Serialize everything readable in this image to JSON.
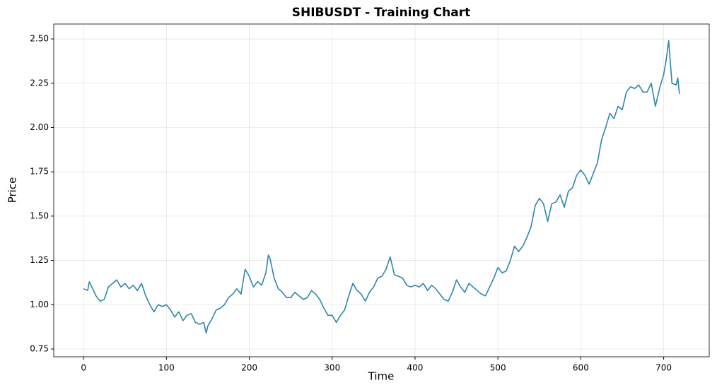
{
  "chart_data": {
    "type": "line",
    "title": "SHIBUSDT - Training Chart",
    "x_label": "Time",
    "y_label": "Price",
    "x": [
      0,
      5,
      7,
      10,
      15,
      20,
      25,
      30,
      35,
      40,
      45,
      50,
      55,
      60,
      65,
      70,
      75,
      80,
      85,
      90,
      95,
      100,
      105,
      110,
      115,
      120,
      125,
      130,
      135,
      140,
      145,
      148,
      150,
      155,
      160,
      165,
      170,
      175,
      180,
      185,
      190,
      195,
      200,
      205,
      210,
      215,
      220,
      223,
      225,
      230,
      235,
      240,
      245,
      250,
      255,
      260,
      265,
      270,
      275,
      280,
      285,
      290,
      295,
      300,
      305,
      310,
      315,
      320,
      325,
      330,
      335,
      340,
      345,
      350,
      355,
      360,
      365,
      370,
      375,
      380,
      385,
      390,
      395,
      400,
      405,
      410,
      415,
      420,
      425,
      430,
      435,
      440,
      445,
      450,
      455,
      460,
      465,
      470,
      475,
      480,
      485,
      490,
      495,
      500,
      505,
      510,
      515,
      520,
      525,
      530,
      535,
      540,
      545,
      550,
      555,
      560,
      565,
      570,
      575,
      580,
      585,
      590,
      595,
      600,
      605,
      610,
      615,
      620,
      625,
      630,
      635,
      640,
      645,
      650,
      655,
      660,
      665,
      670,
      675,
      680,
      685,
      690,
      695,
      700,
      703,
      706,
      710,
      715,
      717,
      719
    ],
    "series": [
      {
        "name": "SHIBUSDT",
        "color": "#2e86ab",
        "values": [
          1.09,
          1.08,
          1.13,
          1.1,
          1.05,
          1.02,
          1.03,
          1.1,
          1.12,
          1.14,
          1.1,
          1.12,
          1.09,
          1.11,
          1.08,
          1.12,
          1.05,
          1.0,
          0.96,
          1.0,
          0.99,
          1.0,
          0.97,
          0.93,
          0.96,
          0.91,
          0.94,
          0.95,
          0.9,
          0.89,
          0.9,
          0.84,
          0.88,
          0.92,
          0.97,
          0.98,
          1.0,
          1.04,
          1.06,
          1.09,
          1.06,
          1.2,
          1.16,
          1.1,
          1.13,
          1.11,
          1.18,
          1.28,
          1.26,
          1.15,
          1.09,
          1.07,
          1.04,
          1.04,
          1.07,
          1.05,
          1.03,
          1.04,
          1.08,
          1.06,
          1.03,
          0.98,
          0.94,
          0.94,
          0.9,
          0.94,
          0.97,
          1.05,
          1.12,
          1.08,
          1.06,
          1.02,
          1.07,
          1.1,
          1.15,
          1.16,
          1.2,
          1.27,
          1.17,
          1.16,
          1.15,
          1.11,
          1.1,
          1.11,
          1.1,
          1.12,
          1.08,
          1.11,
          1.09,
          1.06,
          1.03,
          1.02,
          1.07,
          1.14,
          1.1,
          1.07,
          1.12,
          1.1,
          1.08,
          1.06,
          1.05,
          1.1,
          1.15,
          1.21,
          1.18,
          1.19,
          1.25,
          1.33,
          1.3,
          1.33,
          1.38,
          1.44,
          1.56,
          1.6,
          1.57,
          1.47,
          1.57,
          1.58,
          1.62,
          1.55,
          1.64,
          1.66,
          1.73,
          1.76,
          1.73,
          1.68,
          1.74,
          1.8,
          1.93,
          2.0,
          2.08,
          2.05,
          2.12,
          2.1,
          2.2,
          2.23,
          2.22,
          2.24,
          2.2,
          2.2,
          2.25,
          2.12,
          2.22,
          2.3,
          2.38,
          2.49,
          2.25,
          2.24,
          2.28,
          2.19
        ]
      }
    ],
    "xlim": [
      -35.95,
      754.95
    ],
    "ylim": [
      0.706,
      2.584
    ],
    "xticks": [
      0,
      100,
      200,
      300,
      400,
      500,
      600,
      700
    ],
    "yticks": [
      0.75,
      {
        "value": 1,
        "label": "1.00"
      },
      1.25,
      {
        "value": 1.5,
        "label": "1.50"
      },
      1.75,
      {
        "value": 2,
        "label": "2.00"
      },
      2.25,
      {
        "value": 2.5,
        "label": "2.50"
      }
    ],
    "grid": true
  }
}
